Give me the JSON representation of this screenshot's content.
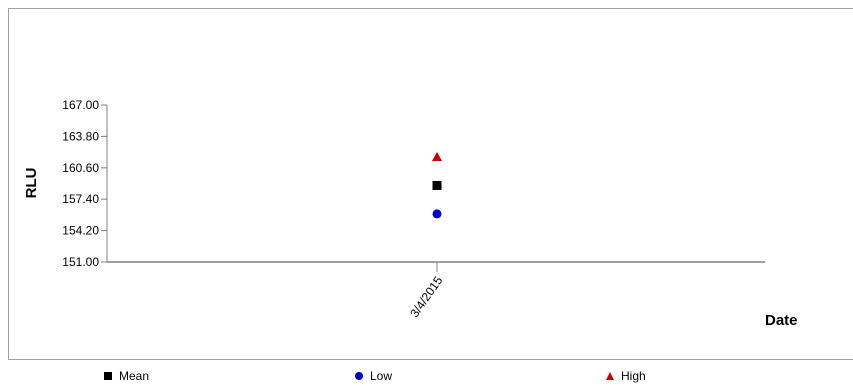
{
  "chart_data": {
    "type": "scatter",
    "title": "",
    "xlabel": "Date",
    "ylabel": "RLU",
    "categories": [
      "3/4/2015"
    ],
    "ylim": [
      151.0,
      167.0
    ],
    "yticks": [
      "151.00",
      "154.20",
      "157.40",
      "160.60",
      "163.80",
      "167.00"
    ],
    "grid": false,
    "legend_placement": "bottom",
    "series": [
      {
        "name": "Mean",
        "values": [
          158.8
        ],
        "marker": "square",
        "color": "#000000"
      },
      {
        "name": "Low",
        "values": [
          155.9
        ],
        "marker": "circle",
        "color": "#0000cc"
      },
      {
        "name": "High",
        "values": [
          161.7
        ],
        "marker": "triangle",
        "color": "#cc0000"
      }
    ]
  }
}
